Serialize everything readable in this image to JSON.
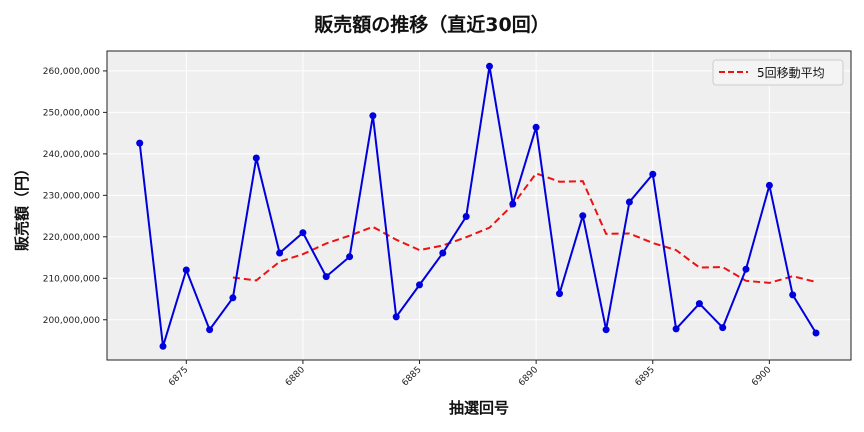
{
  "chart_data": {
    "type": "line",
    "title": "販売額の推移（直近30回）",
    "xlabel": "抽選回号",
    "ylabel": "販売額（円）",
    "x": [
      6873,
      6874,
      6875,
      6876,
      6877,
      6878,
      6879,
      6880,
      6881,
      6882,
      6883,
      6884,
      6885,
      6886,
      6887,
      6888,
      6889,
      6890,
      6891,
      6892,
      6893,
      6894,
      6895,
      6896,
      6897,
      6898,
      6899,
      6900,
      6901,
      6902
    ],
    "x_ticks": [
      6875,
      6880,
      6885,
      6890,
      6895,
      6900
    ],
    "y_ticks": [
      200000000,
      210000000,
      220000000,
      230000000,
      240000000,
      250000000,
      260000000
    ],
    "y_tick_labels": [
      "200,000,000",
      "210,000,000",
      "220,000,000",
      "230,000,000",
      "240,000,000",
      "250,000,000",
      "260,000,000"
    ],
    "xlim": [
      6871.6,
      6903.5
    ],
    "ylim": [
      190300000,
      264800000
    ],
    "grid": true,
    "legend_position": "upper right",
    "series": [
      {
        "name": "販売額",
        "style": "solid line with circle markers",
        "color": "#0000dd",
        "show_in_legend": false,
        "values": [
          242600000,
          193600000,
          212000000,
          197600000,
          205300000,
          239000000,
          216100000,
          221000000,
          210400000,
          215200000,
          249200000,
          200700000,
          208400000,
          216100000,
          224900000,
          261100000,
          227900000,
          246400000,
          206300000,
          225100000,
          197600000,
          228400000,
          235100000,
          197800000,
          203900000,
          198100000,
          212200000,
          232400000,
          206000000,
          196800000
        ]
      },
      {
        "name": "5回移動平均",
        "style": "dashed line",
        "color": "#ee1111",
        "show_in_legend": true,
        "values": [
          null,
          null,
          null,
          null,
          210200000,
          209500000,
          214000000,
          215800000,
          218400000,
          220300000,
          222400000,
          219300000,
          216800000,
          217900000,
          219900000,
          222200000,
          227700000,
          235300000,
          233300000,
          233400000,
          220700000,
          220800000,
          218500000,
          216800000,
          212600000,
          212700000,
          209400000,
          208900000,
          210500000,
          209100000
        ]
      }
    ]
  }
}
